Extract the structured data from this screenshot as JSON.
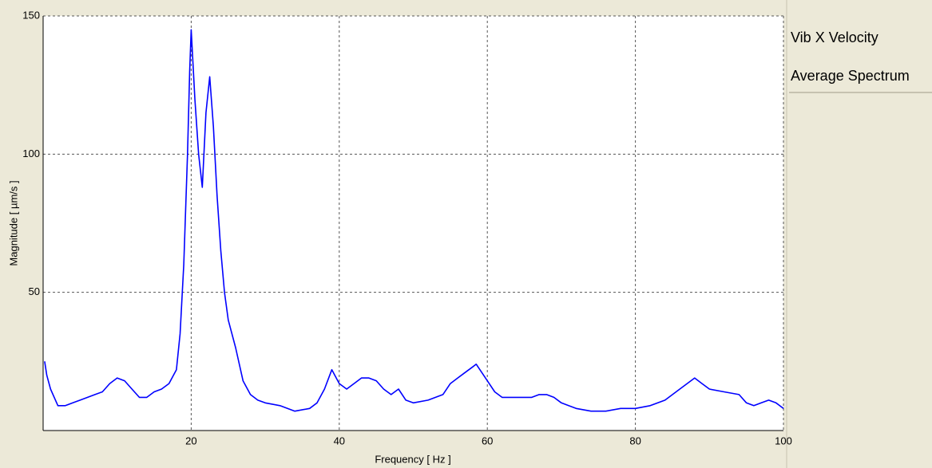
{
  "chart_data": {
    "type": "line",
    "title": "Vib X Velocity",
    "subtitle": "Average Spectrum",
    "x_label": "Frequency [ Hz ]",
    "y_label": "Magnitude [ µm/s ]",
    "color": "#0000ff",
    "grid": true,
    "xlim": [
      0,
      100
    ],
    "xticks": [
      20,
      40,
      60,
      80,
      100
    ],
    "ylim": [
      0,
      150
    ],
    "yticks": [
      50,
      100,
      150
    ],
    "x": [
      0.2,
      0.5,
      1,
      2,
      3,
      4,
      5,
      6,
      7,
      8,
      9,
      10,
      11,
      12,
      13,
      14,
      15,
      16,
      17,
      18,
      18.5,
      19,
      19.5,
      19.8,
      20,
      20.5,
      21,
      21.5,
      22,
      22.5,
      23,
      23.5,
      24,
      24.5,
      25,
      26,
      27,
      28,
      29,
      30,
      32,
      34,
      36,
      37,
      38,
      39,
      40,
      41,
      42,
      43,
      44,
      45,
      46,
      47,
      48,
      49,
      50,
      52,
      54,
      55,
      56,
      57,
      58,
      58.5,
      59,
      60,
      61,
      62,
      64,
      66,
      67,
      68,
      69,
      70,
      72,
      74,
      76,
      78,
      80,
      82,
      84,
      86,
      88,
      89,
      90,
      92,
      94,
      95,
      96,
      97,
      98,
      99,
      100
    ],
    "values": [
      25,
      20,
      15,
      9,
      9,
      10,
      11,
      12,
      13,
      14,
      17,
      19,
      18,
      15,
      12,
      12,
      14,
      15,
      17,
      22,
      35,
      60,
      100,
      130,
      145,
      120,
      100,
      88,
      115,
      128,
      110,
      85,
      65,
      50,
      40,
      30,
      18,
      13,
      11,
      10,
      9,
      7,
      8,
      10,
      15,
      22,
      17,
      15,
      17,
      19,
      19,
      18,
      15,
      13,
      15,
      11,
      10,
      11,
      13,
      17,
      19,
      21,
      23,
      24,
      22,
      18,
      14,
      12,
      12,
      12,
      13,
      13,
      12,
      10,
      8,
      7,
      7,
      8,
      8,
      9,
      11,
      15,
      19,
      17,
      15,
      14,
      13,
      10,
      9,
      10,
      11,
      10,
      8
    ]
  }
}
